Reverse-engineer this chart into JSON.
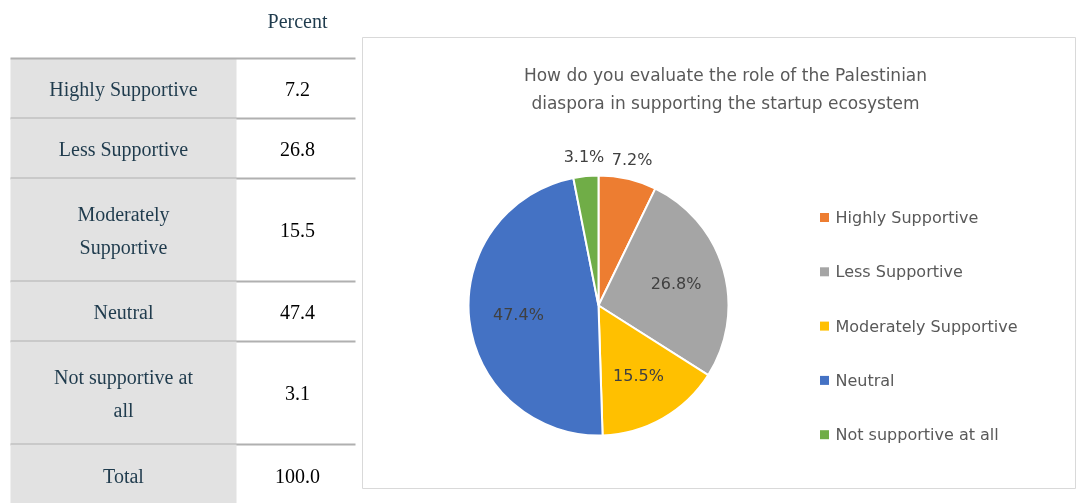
{
  "chart_data": [
    {
      "type": "other",
      "title": "Percent",
      "categories": [
        "Highly Supportive",
        "Less Supportive",
        "Moderately Supportive",
        "Neutral",
        "Not supportive at all"
      ],
      "values": [
        7.2,
        26.8,
        15.5,
        47.4,
        3.1
      ],
      "data_labels": true,
      "annotations": [
        "Total",
        "100.0"
      ]
    },
    {
      "type": "pie",
      "title": "How do you evaluate the role of the Palestinian diaspora in supporting the startup ecosystem",
      "categories": [
        "Highly Supportive",
        "Less Supportive",
        "Moderately Supportive",
        "Neutral",
        "Not supportive at all"
      ],
      "values": [
        7.2,
        26.8,
        15.5,
        47.4,
        3.1
      ],
      "colors": [
        "#ed7d31",
        "#a5a5a5",
        "#ffc000",
        "#4472c4",
        "#70ad47"
      ],
      "value_labels": [
        "7.2%",
        "26.8%",
        "15.5%",
        "47.4%",
        "3.1%"
      ],
      "data_labels": true,
      "legend": "right"
    }
  ]
}
